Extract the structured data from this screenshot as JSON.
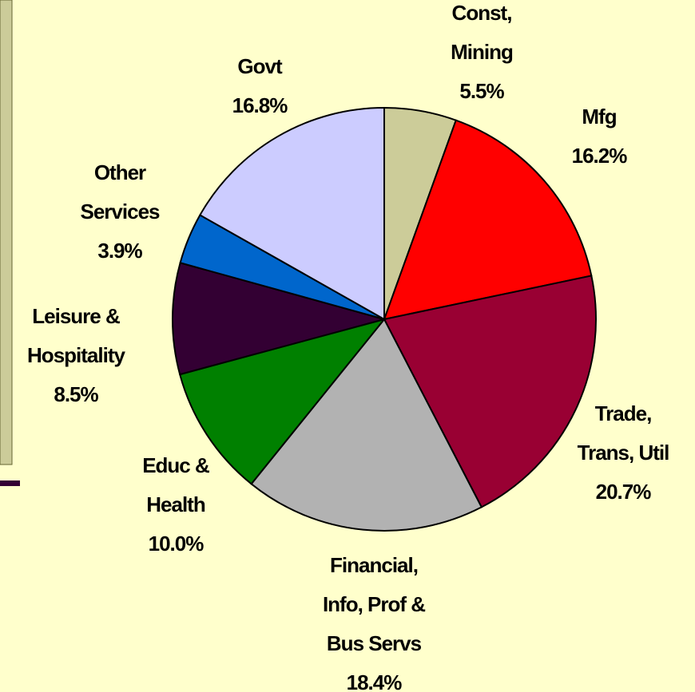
{
  "chart_data": {
    "type": "pie",
    "categories": [
      "Const,\nMining",
      "Mfg",
      "Trade,\nTrans, Util",
      "Financial,\nInfo, Prof &\nBus Servs",
      "Educ &\nHealth",
      "Leisure &\nHospitality",
      "Other\nServices",
      "Govt"
    ],
    "values": [
      5.5,
      16.2,
      20.7,
      18.4,
      10.0,
      8.5,
      3.9,
      16.8
    ],
    "value_labels": [
      "5.5%",
      "16.2%",
      "20.7%",
      "18.4%",
      "10.0%",
      "8.5%",
      "3.9%",
      "16.8%"
    ],
    "colors": [
      "#CCCC99",
      "#FF0000",
      "#990033",
      "#B2B2B2",
      "#008000",
      "#330033",
      "#0066CC",
      "#CCCCFF"
    ]
  }
}
